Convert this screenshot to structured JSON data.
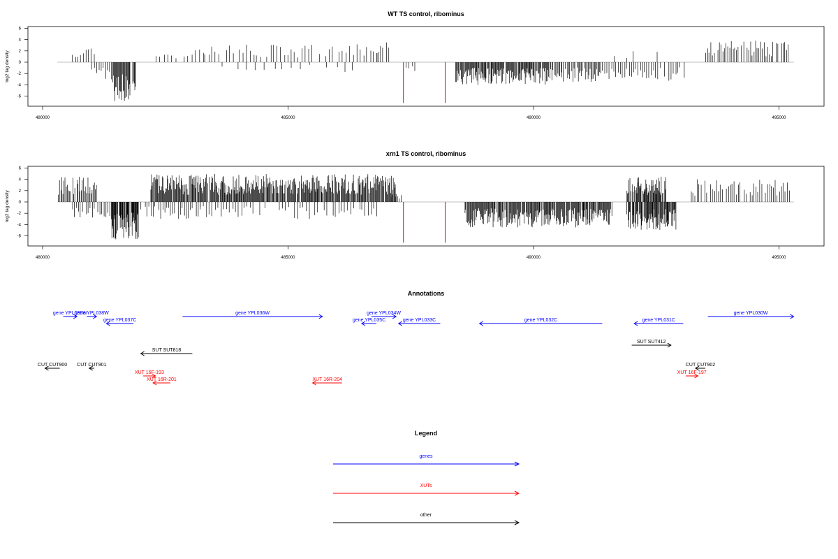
{
  "chart_data": [
    {
      "type": "bar",
      "title": "WT TS control, ribominus",
      "ylabel": "log2 tag density",
      "xlim": [
        480000,
        495300
      ],
      "ylim": [
        -7,
        7
      ],
      "x_ticks": [
        "480000",
        "485000",
        "490000",
        "495000"
      ],
      "y_ticks": [
        "6",
        "4",
        "2",
        "0",
        "-2",
        "-4",
        "-6"
      ],
      "highlight_color": "#ff0000",
      "highlights": [
        {
          "x": 487350,
          "y": -7.2
        },
        {
          "x": 488200,
          "y": -7.2
        }
      ],
      "segments": [
        {
          "start": 480600,
          "end": 481050,
          "step": 55,
          "max": 3.0,
          "sign": 1,
          "seed": 11
        },
        {
          "start": 481000,
          "end": 481400,
          "step": 45,
          "max": 3.0,
          "sign": -1,
          "seed": 12
        },
        {
          "start": 481400,
          "end": 481900,
          "step": 14,
          "max": 7.0,
          "sign": -1,
          "seed": 13
        },
        {
          "start": 482300,
          "end": 483300,
          "step": 80,
          "max": 2.5,
          "sign": 1,
          "seed": 14
        },
        {
          "start": 483300,
          "end": 486800,
          "step": 70,
          "max": 3.2,
          "sign": 1,
          "seed": 15
        },
        {
          "start": 483600,
          "end": 486300,
          "step": 180,
          "max": 1.8,
          "sign": -1,
          "seed": 16
        },
        {
          "start": 486800,
          "end": 487100,
          "step": 40,
          "max": 3.8,
          "sign": 1,
          "seed": 17
        },
        {
          "start": 487400,
          "end": 487600,
          "step": 60,
          "max": 2.2,
          "sign": -1,
          "seed": 18
        },
        {
          "start": 488400,
          "end": 490400,
          "step": 14,
          "max": 4.0,
          "sign": -1,
          "seed": 19
        },
        {
          "start": 490400,
          "end": 491400,
          "step": 22,
          "max": 3.5,
          "sign": -1,
          "seed": 20
        },
        {
          "start": 491400,
          "end": 493100,
          "step": 45,
          "max": 3.5,
          "sign": -1,
          "seed": 21
        },
        {
          "start": 491600,
          "end": 492600,
          "step": 130,
          "max": 2.5,
          "sign": 1,
          "seed": 22
        },
        {
          "start": 493500,
          "end": 495200,
          "step": 35,
          "max": 3.8,
          "sign": 1,
          "seed": 23
        }
      ]
    },
    {
      "type": "bar",
      "title": "xrn1 TS control, ribominus",
      "ylabel": "log2 tag density",
      "xlim": [
        480000,
        495300
      ],
      "ylim": [
        -7,
        7
      ],
      "x_ticks": [
        "480000",
        "485000",
        "490000",
        "495000"
      ],
      "y_ticks": [
        "6",
        "4",
        "2",
        "0",
        "-2",
        "-4",
        "-6"
      ],
      "highlight_color": "#ff0000",
      "highlights": [
        {
          "x": 487350,
          "y": -7.2
        },
        {
          "x": 488200,
          "y": -7.2
        }
      ],
      "segments": [
        {
          "start": 480300,
          "end": 481100,
          "step": 22,
          "max": 4.5,
          "sign": 1,
          "seed": 31
        },
        {
          "start": 480600,
          "end": 481400,
          "step": 40,
          "max": 3.0,
          "sign": -1,
          "seed": 32
        },
        {
          "start": 481400,
          "end": 481950,
          "step": 10,
          "max": 7.0,
          "sign": -1,
          "seed": 33
        },
        {
          "start": 482000,
          "end": 483200,
          "step": 40,
          "max": 3.0,
          "sign": -1,
          "seed": 34
        },
        {
          "start": 482200,
          "end": 487200,
          "step": 14,
          "max": 5.0,
          "sign": 1,
          "seed": 35
        },
        {
          "start": 483200,
          "end": 486800,
          "step": 60,
          "max": 3.0,
          "sign": -1,
          "seed": 36
        },
        {
          "start": 487100,
          "end": 487300,
          "step": 40,
          "max": 2.0,
          "sign": 1,
          "seed": 37
        },
        {
          "start": 488600,
          "end": 491600,
          "step": 14,
          "max": 4.5,
          "sign": -1,
          "seed": 38
        },
        {
          "start": 491900,
          "end": 492700,
          "step": 12,
          "max": 4.5,
          "sign": 1,
          "seed": 39
        },
        {
          "start": 491900,
          "end": 492900,
          "step": 12,
          "max": 5.0,
          "sign": -1,
          "seed": 40
        },
        {
          "start": 493200,
          "end": 495200,
          "step": 40,
          "max": 4.2,
          "sign": 1,
          "seed": 41
        }
      ]
    }
  ],
  "annotations": {
    "title": "Annotations",
    "colors": {
      "gene": "#0000ff",
      "xut": "#ff0000",
      "other": "#000000"
    },
    "items": [
      {
        "label": "gene YPL039W",
        "color": "gene",
        "x1": 480700,
        "x2": 480420,
        "dir": "right",
        "row": 0
      },
      {
        "label": "gene YPL038W",
        "color": "gene",
        "x1": 480900,
        "x2": 481100,
        "dir": "right",
        "row": 0
      },
      {
        "label": "gene YPL037C",
        "color": "gene",
        "x1": 481300,
        "x2": 481850,
        "dir": "left",
        "row": 1
      },
      {
        "label": "gene YPL036W",
        "color": "gene",
        "x1": 482850,
        "x2": 485700,
        "dir": "right",
        "row": 0
      },
      {
        "label": "gene YPL035C",
        "color": "gene",
        "x1": 486500,
        "x2": 486800,
        "dir": "left",
        "row": 1
      },
      {
        "label": "gene YPL034W",
        "color": "gene",
        "x1": 486700,
        "x2": 487200,
        "dir": "right",
        "row": 0
      },
      {
        "label": "gene YPL033C",
        "color": "gene",
        "x1": 487250,
        "x2": 488100,
        "dir": "left",
        "row": 1
      },
      {
        "label": "gene YPL032C",
        "color": "gene",
        "x1": 488900,
        "x2": 491400,
        "dir": "left",
        "row": 1
      },
      {
        "label": "gene YPL031C",
        "color": "gene",
        "x1": 492050,
        "x2": 493050,
        "dir": "left",
        "row": 1
      },
      {
        "label": "gene YPL030W",
        "color": "gene",
        "x1": 493550,
        "x2": 495300,
        "dir": "right",
        "row": 0
      },
      {
        "label": "SUT SUT818",
        "color": "other",
        "x1": 482000,
        "x2": 483050,
        "dir": "left",
        "row": 3
      },
      {
        "label": "SUT SUT412",
        "color": "other",
        "x1": 492000,
        "x2": 492800,
        "dir": "right",
        "row": 2
      },
      {
        "label": "CUT CUT900",
        "color": "other",
        "x1": 480050,
        "x2": 480350,
        "dir": "left",
        "row": 4
      },
      {
        "label": "CUT CUT901",
        "color": "other",
        "x1": 480950,
        "x2": 481050,
        "dir": "left",
        "row": 4
      },
      {
        "label": "CUT CUT902",
        "color": "other",
        "x1": 493300,
        "x2": 493500,
        "dir": "left",
        "row": 4
      },
      {
        "label": "XUT 16F-193",
        "color": "xut",
        "x1": 482050,
        "x2": 482300,
        "dir": "right",
        "row": 5
      },
      {
        "label": "XUT 16R-201",
        "color": "xut",
        "x1": 482250,
        "x2": 482600,
        "dir": "left",
        "row": 6
      },
      {
        "label": "XUT 16R-204",
        "color": "xut",
        "x1": 485500,
        "x2": 486100,
        "dir": "left",
        "row": 6
      },
      {
        "label": "XUT 16F-197",
        "color": "xut",
        "x1": 493100,
        "x2": 493350,
        "dir": "right",
        "row": 5
      }
    ]
  },
  "legend": {
    "title": "Legend",
    "entries": [
      {
        "label": "genes",
        "color": "gene"
      },
      {
        "label": "XUTs",
        "color": "xut"
      },
      {
        "label": "other",
        "color": "other"
      }
    ]
  }
}
